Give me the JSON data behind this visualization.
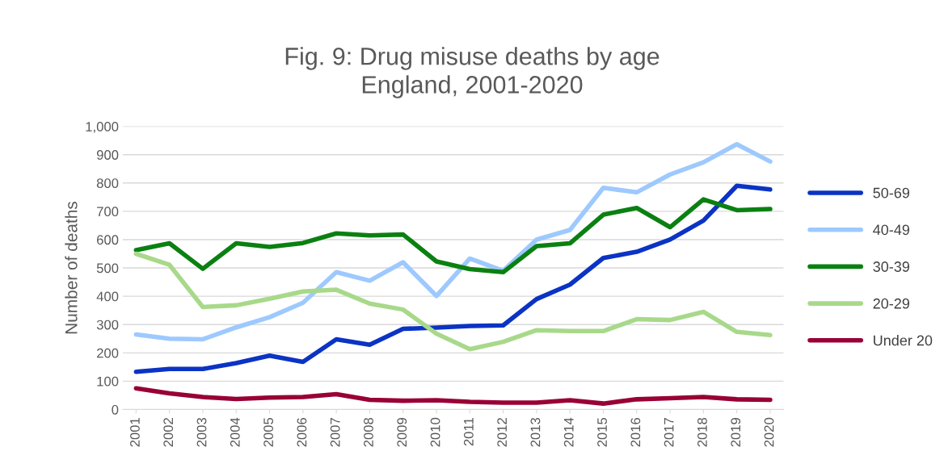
{
  "chart_data": {
    "type": "line",
    "title": "Fig. 9: Drug misuse deaths by age\nEngland, 2001-2020",
    "ylabel": "Number of deaths",
    "categories": [
      "2001",
      "2002",
      "2003",
      "2004",
      "2005",
      "2006",
      "2007",
      "2008",
      "2009",
      "2010",
      "2011",
      "2012",
      "2013",
      "2014",
      "2015",
      "2016",
      "2017",
      "2018",
      "2019",
      "2020"
    ],
    "series": [
      {
        "name": "50-69",
        "color": "#0b33c4",
        "values": [
          133,
          143,
          143,
          164,
          190,
          168,
          248,
          229,
          285,
          289,
          295,
          297,
          390,
          441,
          535,
          557,
          600,
          667,
          790,
          777
        ]
      },
      {
        "name": "40-49",
        "color": "#9dc9ff",
        "values": [
          265,
          250,
          248,
          290,
          326,
          377,
          485,
          455,
          520,
          401,
          533,
          490,
          600,
          634,
          783,
          767,
          830,
          873,
          937,
          876
        ]
      },
      {
        "name": "30-39",
        "color": "#0b8012",
        "values": [
          563,
          587,
          497,
          587,
          574,
          588,
          622,
          615,
          618,
          523,
          496,
          485,
          577,
          587,
          688,
          712,
          644,
          742,
          704,
          708
        ]
      },
      {
        "name": "20-29",
        "color": "#a8d98a",
        "values": [
          550,
          511,
          362,
          368,
          391,
          417,
          423,
          374,
          353,
          268,
          213,
          239,
          280,
          277,
          277,
          319,
          316,
          345,
          274,
          263
        ]
      },
      {
        "name": "Under 20",
        "color": "#990036",
        "values": [
          75,
          57,
          44,
          37,
          42,
          44,
          54,
          34,
          31,
          33,
          27,
          24,
          24,
          33,
          21,
          36,
          40,
          44,
          36,
          34
        ]
      }
    ],
    "ylim": [
      0,
      1000
    ],
    "yticks": [
      0,
      100,
      200,
      300,
      400,
      500,
      600,
      700,
      800,
      900,
      {
        "value": 1000,
        "label": "1,000"
      }
    ],
    "grid": "y",
    "legend": "right",
    "marker": "none",
    "line_style": "solid"
  }
}
